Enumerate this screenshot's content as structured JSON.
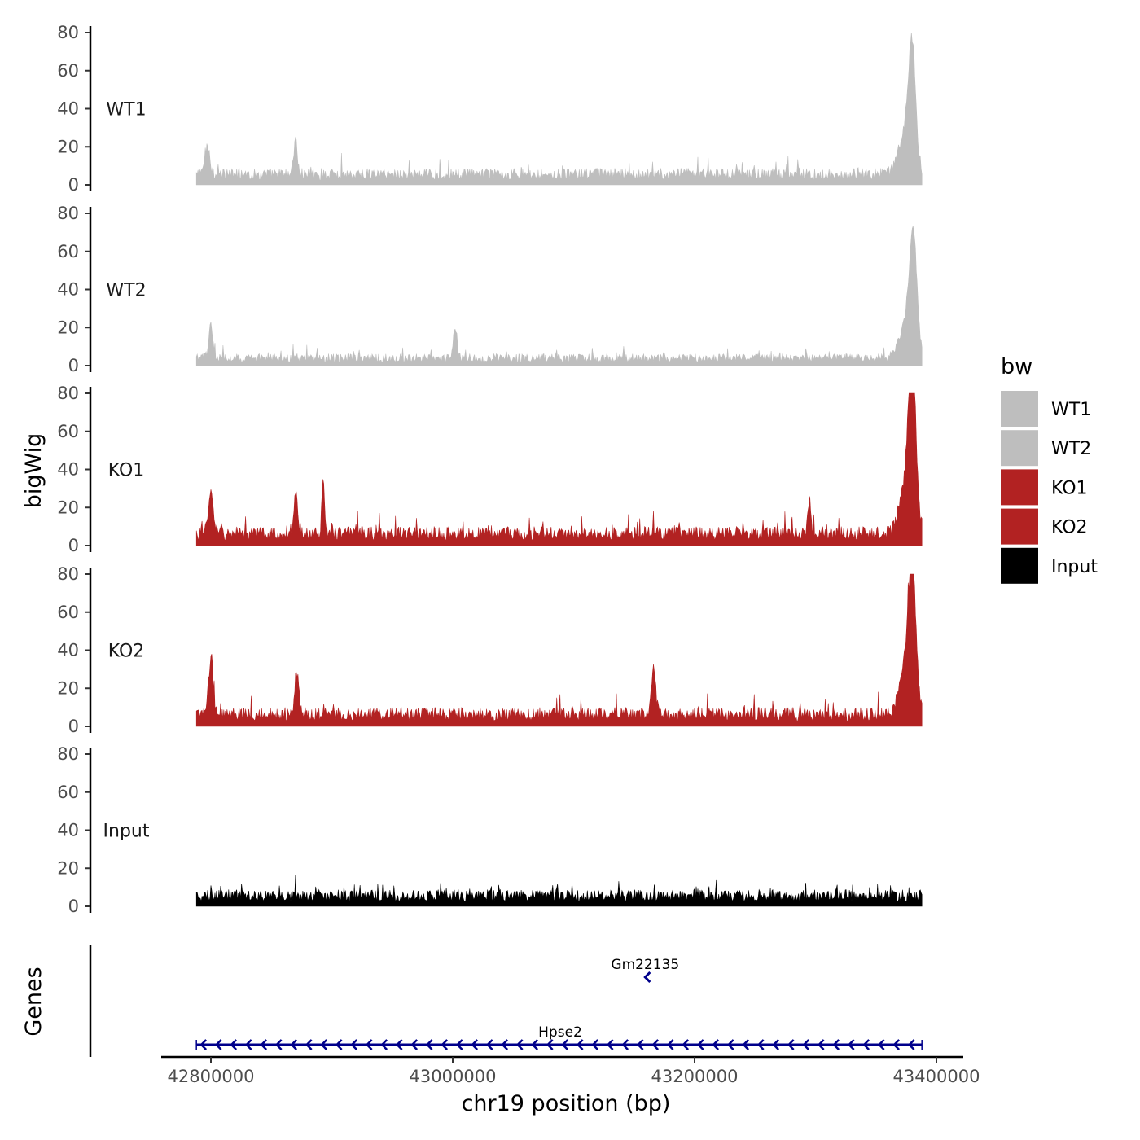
{
  "chart_data": {
    "type": "area",
    "xlabel": "chr19 position (bp)",
    "ylabel": "bigWig",
    "genes_label": "Genes",
    "xlim": [
      42788000,
      43388000
    ],
    "x_ticks": [
      42800000,
      43000000,
      43200000,
      43400000
    ],
    "x_tick_labels": [
      "42800000",
      "43000000",
      "43200000",
      "43400000"
    ],
    "ylim": [
      0,
      80
    ],
    "y_ticks": [
      0,
      20,
      40,
      60,
      80
    ],
    "y_tick_labels": [
      "0",
      "20",
      "40",
      "60",
      "80"
    ],
    "grid": false,
    "legend": {
      "title": "bw",
      "position": "right",
      "entries": [
        {
          "label": "WT1",
          "color": "#bebebe"
        },
        {
          "label": "WT2",
          "color": "#bebebe"
        },
        {
          "label": "KO1",
          "color": "#b22222"
        },
        {
          "label": "KO2",
          "color": "#b22222"
        },
        {
          "label": "Input",
          "color": "#000000"
        }
      ]
    },
    "series": [
      {
        "name": "WT1",
        "color": "#bebebe",
        "baseline": 7,
        "peaks": [
          {
            "x": 43380000,
            "y": 55,
            "width": 4000
          },
          {
            "x": 43375000,
            "y": 25,
            "width": 8000
          },
          {
            "x": 42797000,
            "y": 15,
            "width": 3000
          },
          {
            "x": 42870000,
            "y": 20,
            "width": 2000
          }
        ]
      },
      {
        "name": "WT2",
        "color": "#bebebe",
        "baseline": 5,
        "peaks": [
          {
            "x": 43381000,
            "y": 54,
            "width": 4000
          },
          {
            "x": 43376000,
            "y": 22,
            "width": 8000
          },
          {
            "x": 42800000,
            "y": 17,
            "width": 2500
          },
          {
            "x": 43002000,
            "y": 17,
            "width": 2000
          }
        ]
      },
      {
        "name": "KO1",
        "color": "#b22222",
        "baseline": 8,
        "peaks": [
          {
            "x": 43380000,
            "y": 78,
            "width": 4000
          },
          {
            "x": 43376000,
            "y": 30,
            "width": 8000
          },
          {
            "x": 42800000,
            "y": 22,
            "width": 3000
          },
          {
            "x": 42870000,
            "y": 20,
            "width": 2500
          },
          {
            "x": 42893000,
            "y": 25,
            "width": 1800
          },
          {
            "x": 43295000,
            "y": 18,
            "width": 2000
          }
        ]
      },
      {
        "name": "KO2",
        "color": "#b22222",
        "baseline": 8,
        "peaks": [
          {
            "x": 43380000,
            "y": 65,
            "width": 4000
          },
          {
            "x": 43376000,
            "y": 28,
            "width": 8000
          },
          {
            "x": 42800000,
            "y": 31,
            "width": 2500
          },
          {
            "x": 42871000,
            "y": 23,
            "width": 2500
          },
          {
            "x": 43166000,
            "y": 25,
            "width": 2500
          }
        ]
      },
      {
        "name": "Input",
        "color": "#000000",
        "baseline": 7,
        "peaks": []
      }
    ],
    "genes": [
      {
        "name": "Gm22135",
        "start": 43159000,
        "end": 43162000,
        "strand": "-",
        "row": 1
      },
      {
        "name": "Hpse2",
        "start": 42788000,
        "end": 43388000,
        "strand": "-",
        "row": 2
      }
    ]
  },
  "colors": {
    "gene": "#00008b",
    "axis": "#000000"
  }
}
